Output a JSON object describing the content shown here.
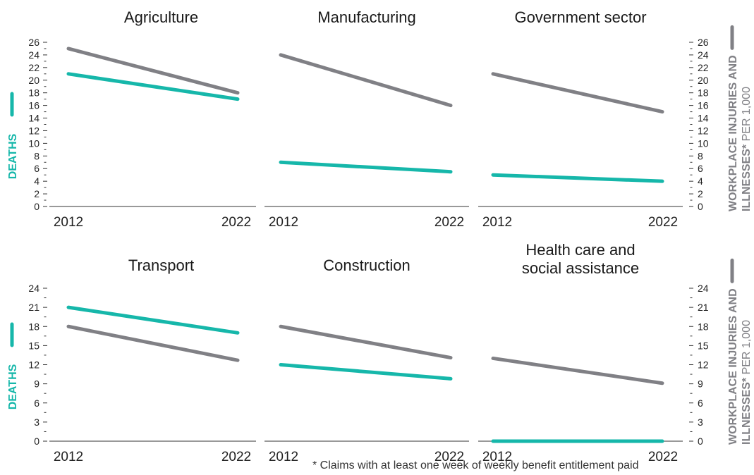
{
  "colors": {
    "deaths": "#16b7aa",
    "injuries": "#808085",
    "axis": "#333333"
  },
  "axes": {
    "left_label": "DEATHS",
    "right_label_line1": "WORKPLACE INJURIES AND",
    "right_label_line2_bold": "ILLNESSES*",
    "right_label_line2_light": " PER 1,000"
  },
  "footnote": "* Claims with at least one week of weekly benefit entitlement paid",
  "chart_data": [
    {
      "type": "line",
      "title": [
        "Agriculture"
      ],
      "categories": [
        "2012",
        "2022"
      ],
      "ylim": [
        0,
        26
      ],
      "yticks": [
        0,
        2,
        4,
        6,
        8,
        10,
        12,
        14,
        16,
        18,
        20,
        22,
        24,
        26
      ],
      "series": [
        {
          "name": "DEATHS",
          "values": [
            21,
            17
          ]
        },
        {
          "name": "WORKPLACE INJURIES AND ILLNESSES* PER 1,000",
          "values": [
            25,
            18
          ]
        }
      ]
    },
    {
      "type": "line",
      "title": [
        "Manufacturing"
      ],
      "categories": [
        "2012",
        "2022"
      ],
      "ylim": [
        0,
        26
      ],
      "yticks": [],
      "series": [
        {
          "name": "DEATHS",
          "values": [
            7,
            5.5
          ]
        },
        {
          "name": "WORKPLACE INJURIES AND ILLNESSES* PER 1,000",
          "values": [
            24,
            16
          ]
        }
      ]
    },
    {
      "type": "line",
      "title": [
        "Government sector"
      ],
      "categories": [
        "2012",
        "2022"
      ],
      "ylim": [
        0,
        26
      ],
      "yticks": [
        0,
        2,
        4,
        6,
        8,
        10,
        12,
        14,
        16,
        18,
        20,
        22,
        24,
        26
      ],
      "series": [
        {
          "name": "DEATHS",
          "values": [
            5,
            4
          ]
        },
        {
          "name": "WORKPLACE INJURIES AND ILLNESSES* PER 1,000",
          "values": [
            21,
            15
          ]
        }
      ]
    },
    {
      "type": "line",
      "title": [
        "Transport"
      ],
      "categories": [
        "2012",
        "2022"
      ],
      "ylim": [
        0,
        24
      ],
      "yticks": [
        0,
        3,
        6,
        9,
        12,
        15,
        18,
        21,
        24
      ],
      "series": [
        {
          "name": "DEATHS",
          "values": [
            21,
            17
          ]
        },
        {
          "name": "WORKPLACE INJURIES AND ILLNESSES* PER 1,000",
          "values": [
            18,
            12.7
          ]
        }
      ]
    },
    {
      "type": "line",
      "title": [
        "Construction"
      ],
      "categories": [
        "2012",
        "2022"
      ],
      "ylim": [
        0,
        24
      ],
      "yticks": [],
      "series": [
        {
          "name": "DEATHS",
          "values": [
            12,
            9.8
          ]
        },
        {
          "name": "WORKPLACE INJURIES AND ILLNESSES* PER 1,000",
          "values": [
            18,
            13.1
          ]
        }
      ]
    },
    {
      "type": "line",
      "title": [
        "Health care and",
        "social assistance"
      ],
      "categories": [
        "2012",
        "2022"
      ],
      "ylim": [
        0,
        24
      ],
      "yticks": [
        0,
        3,
        6,
        9,
        12,
        15,
        18,
        21,
        24
      ],
      "series": [
        {
          "name": "DEATHS",
          "values": [
            0,
            0
          ]
        },
        {
          "name": "WORKPLACE INJURIES AND ILLNESSES* PER 1,000",
          "values": [
            13,
            9.1
          ]
        }
      ]
    }
  ]
}
